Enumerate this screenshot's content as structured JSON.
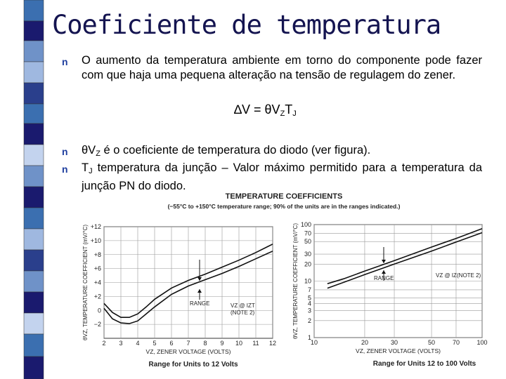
{
  "title": "Coeficiente de temperatura",
  "bullet": "n",
  "intro": "O aumento da temperatura ambiente em torno do componente pode fazer com que haja uma pequena alteração na tensão de regulagem do zener.",
  "formula": {
    "lhs": "∆V = θV",
    "sub1": "Z",
    "t": "T",
    "sub2": "J"
  },
  "items": [
    [
      "θV",
      "Z",
      " é o coeficiente de temperatura do diodo (ver figura)."
    ],
    [
      "T",
      "J",
      " temperatura da junção – Valor máximo permitido para a temperatura da junção PN do diodo."
    ]
  ],
  "figure": {
    "title": "TEMPERATURE COEFFICIENTS",
    "subtitle": "(−55°C to +150°C temperature range; 90% of the units are in the ranges indicated.)",
    "charts": [
      {
        "y_label": "θVZ, TEMPERATURE COEFFICIENT (mV/°C)",
        "x_label": "VZ, ZENER VOLTAGE (VOLTS)",
        "caption": "Range for Units to 12 Volts",
        "log": false,
        "xlim": [
          2,
          12
        ],
        "ylim": [
          -4,
          12
        ],
        "xticks": [
          2,
          3,
          4,
          5,
          6,
          7,
          8,
          9,
          10,
          11,
          12
        ],
        "yticks": [
          {
            "value": 12,
            "label": "+12"
          },
          {
            "value": 10,
            "label": "+10"
          },
          {
            "value": 8,
            "label": "+8"
          },
          {
            "value": 6,
            "label": "+6"
          },
          {
            "value": 4,
            "label": "+4"
          },
          {
            "value": 2,
            "label": "+2"
          },
          0,
          {
            "value": -2,
            "label": "−2"
          }
        ],
        "series": [
          {
            "x": [
              2,
              2.5,
              3,
              3.5,
              4,
              4.5,
              5,
              6,
              7,
              8,
              9,
              10,
              11,
              12
            ],
            "y": [
              1,
              -0.3,
              -1,
              -1,
              -0.5,
              0.5,
              1.6,
              3.2,
              4.3,
              5.2,
              6.2,
              7.2,
              8.3,
              9.5
            ]
          },
          {
            "x": [
              2,
              2.5,
              3,
              3.5,
              4,
              4.5,
              5,
              6,
              7,
              8,
              9,
              10,
              11,
              12
            ],
            "y": [
              0.3,
              -1.2,
              -1.8,
              -1.9,
              -1.5,
              -0.5,
              0.5,
              2.3,
              3.5,
              4.4,
              5.3,
              6.3,
              7.4,
              8.5
            ]
          }
        ],
        "annotations": [
          "RANGE",
          "VZ @ IZT",
          "(NOTE 2)"
        ]
      },
      {
        "y_label": "θVZ, TEMPERATURE COEFFICIENT (mV/°C)",
        "x_label": "VZ, ZENER VOLTAGE (VOLTS)",
        "caption": "Range for Units 12 to 100 Volts",
        "log": true,
        "xlim": [
          10,
          100
        ],
        "ylim": [
          1,
          100
        ],
        "xticks": [
          10,
          20,
          30,
          50,
          70,
          100
        ],
        "yticks": [
          1,
          2,
          3,
          4,
          5,
          7,
          10,
          20,
          30,
          50,
          70,
          100
        ],
        "series": [
          {
            "x": [
              12,
              15,
              20,
              30,
              50,
              70,
              100
            ],
            "y": [
              9,
              11,
              15,
              23,
              40,
              57,
              85
            ]
          },
          {
            "x": [
              12,
              15,
              20,
              30,
              50,
              70,
              100
            ],
            "y": [
              7.5,
              9.5,
              13,
              20,
              34,
              49,
              72
            ]
          }
        ],
        "annotations": [
          "RANGE",
          "VZ @ IZ",
          "(NOTE 2)"
        ]
      }
    ]
  }
}
